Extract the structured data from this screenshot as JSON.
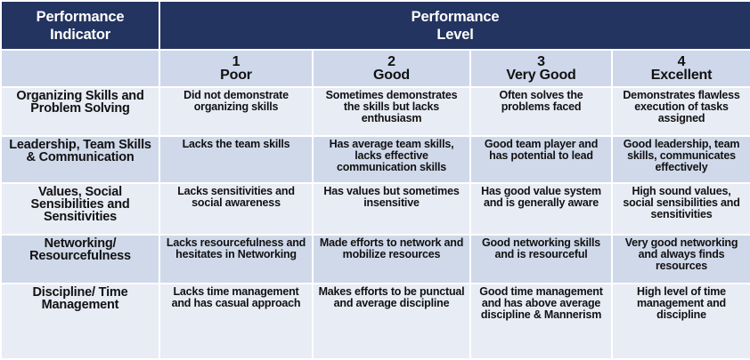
{
  "header": {
    "indicator_label": "Performance Indicator",
    "level_label": "Performance Level"
  },
  "levels": [
    {
      "number": "1",
      "label": "Poor"
    },
    {
      "number": "2",
      "label": "Good"
    },
    {
      "number": "3",
      "label": "Very Good"
    },
    {
      "number": "4",
      "label": "Excellent"
    }
  ],
  "rows": [
    {
      "indicator": "Organizing Skills and Problem Solving",
      "cells": [
        "Did not demonstrate organizing skills",
        "Sometimes demonstrates the skills but lacks enthusiasm",
        "Often solves the problems faced",
        "Demonstrates flawless execution of tasks assigned"
      ]
    },
    {
      "indicator": "Leadership, Team Skills & Communication",
      "cells": [
        "Lacks the team skills",
        "Has average team skills, lacks effective communication skills",
        "Good team player and has potential to lead",
        "Good leadership, team skills, communicates effectively"
      ]
    },
    {
      "indicator": "Values, Social Sensibilities and Sensitivities",
      "cells": [
        "Lacks sensitivities and social awareness",
        "Has values but sometimes insensitive",
        "Has good value system and is generally aware",
        "High sound values, social sensibilities and sensitivities"
      ]
    },
    {
      "indicator": "Networking/ Resourcefulness",
      "cells": [
        "Lacks resourcefulness and hesitates in Networking",
        "Made efforts to network and mobilize resources",
        "Good networking skills and is resourceful",
        "Very good networking and always finds resources"
      ]
    },
    {
      "indicator": "Discipline/ Time Management",
      "cells": [
        "Lacks time management and has casual approach",
        "Makes efforts to be punctual and average discipline",
        "Good time management and has above average discipline & Mannerism",
        "High level of time management and discipline"
      ]
    }
  ],
  "colors": {
    "header": "#243460",
    "level_row": "#cfd8ea",
    "row_light": "#e8ecf5",
    "row_dark": "#d0d9ea"
  }
}
